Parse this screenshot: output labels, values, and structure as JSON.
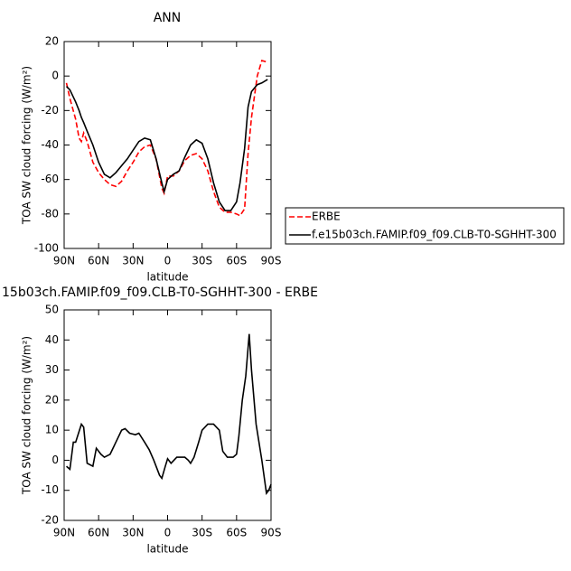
{
  "chart_data": [
    {
      "type": "line",
      "title": "ANN",
      "xlabel": "latitude",
      "ylabel": "TOA SW cloud forcing (W/m²)",
      "x": [
        88,
        85,
        80,
        77,
        75,
        73,
        70,
        65,
        60,
        55,
        50,
        45,
        40,
        35,
        30,
        25,
        20,
        15,
        10,
        5,
        3,
        0,
        -5,
        -10,
        -15,
        -20,
        -25,
        -30,
        -35,
        -40,
        -45,
        -50,
        -55,
        -60,
        -63,
        -67,
        -70,
        -73,
        -78,
        -82,
        -87
      ],
      "series": [
        {
          "name": "ERBE",
          "color": "#ff0000",
          "dashed": true,
          "values": [
            -4,
            -13,
            -25,
            -36,
            -38,
            -33,
            -38,
            -50,
            -56,
            -60,
            -63,
            -64,
            -61,
            -55,
            -50,
            -44,
            -41,
            -40,
            -48,
            -65,
            -68,
            -58,
            -58,
            -55,
            -49,
            -46,
            -45,
            -48,
            -55,
            -67,
            -76,
            -79,
            -79,
            -80,
            -81,
            -77,
            -45,
            -24,
            0,
            9,
            8
          ]
        },
        {
          "name": "f.e15b03ch.FAMIP.f09_f09.CLB-T0-SGHHT-300",
          "color": "#000000",
          "dashed": false,
          "values": [
            -6,
            -8,
            -15,
            -20,
            -24,
            -27,
            -32,
            -40,
            -50,
            -57,
            -59,
            -56,
            -52,
            -48,
            -43,
            -38,
            -36,
            -37,
            -48,
            -62,
            -67,
            -60,
            -57,
            -55,
            -47,
            -40,
            -37,
            -39,
            -48,
            -62,
            -73,
            -78,
            -78,
            -73,
            -62,
            -42,
            -18,
            -9,
            -5,
            -4,
            -2
          ]
        }
      ],
      "xlim": [
        90,
        -90
      ],
      "xticks": [
        {
          "value": 90,
          "label": "90N"
        },
        {
          "value": 60,
          "label": "60N"
        },
        {
          "value": 30,
          "label": "30N"
        },
        0,
        {
          "value": -30,
          "label": "30S"
        },
        {
          "value": -60,
          "label": "60S"
        },
        {
          "value": -90,
          "label": "90S"
        }
      ],
      "ylim": [
        -100,
        20
      ],
      "yticks": [
        -100,
        -80,
        -60,
        -40,
        -20,
        0,
        20
      ],
      "legend": "right"
    },
    {
      "type": "line",
      "title": "15b03ch.FAMIP.f09_f09.CLB-T0-SGHHT-300 - ERBE",
      "xlabel": "latitude",
      "ylabel": "TOA SW cloud forcing (W/m²)",
      "x": [
        88,
        85,
        82,
        80,
        75,
        73,
        70,
        65,
        62,
        58,
        55,
        50,
        45,
        40,
        37,
        33,
        28,
        25,
        20,
        16,
        12,
        7,
        5,
        2,
        0,
        -3,
        -8,
        -12,
        -15,
        -18,
        -20,
        -23,
        -27,
        -30,
        -35,
        -40,
        -45,
        -48,
        -52,
        -57,
        -60,
        -62,
        -65,
        -68,
        -71,
        -73,
        -77,
        -82,
        -86,
        -88,
        -90
      ],
      "series": [
        {
          "name": null,
          "color": "#000000",
          "dashed": false,
          "values": [
            -2,
            -3,
            6,
            6,
            12,
            11,
            -1,
            -2,
            4,
            2,
            1,
            2,
            6,
            10,
            10.5,
            9,
            8.5,
            9,
            6,
            3.5,
            0,
            -5,
            -6,
            -2,
            0.5,
            -1,
            1,
            1,
            1,
            0,
            -1,
            1,
            6,
            10,
            12,
            12,
            10,
            3,
            1,
            1,
            2,
            8,
            20,
            28,
            42,
            30,
            12,
            0,
            -11,
            -10,
            -8
          ]
        }
      ],
      "xlim": [
        90,
        -90
      ],
      "xticks": [
        {
          "value": 90,
          "label": "90N"
        },
        {
          "value": 60,
          "label": "60N"
        },
        {
          "value": 30,
          "label": "30N"
        },
        0,
        {
          "value": -30,
          "label": "30S"
        },
        {
          "value": -60,
          "label": "60S"
        },
        {
          "value": -90,
          "label": "90S"
        }
      ],
      "ylim": [
        -20,
        50
      ],
      "yticks": [
        -20,
        -10,
        0,
        10,
        20,
        30,
        40,
        50
      ],
      "legend": null
    }
  ]
}
